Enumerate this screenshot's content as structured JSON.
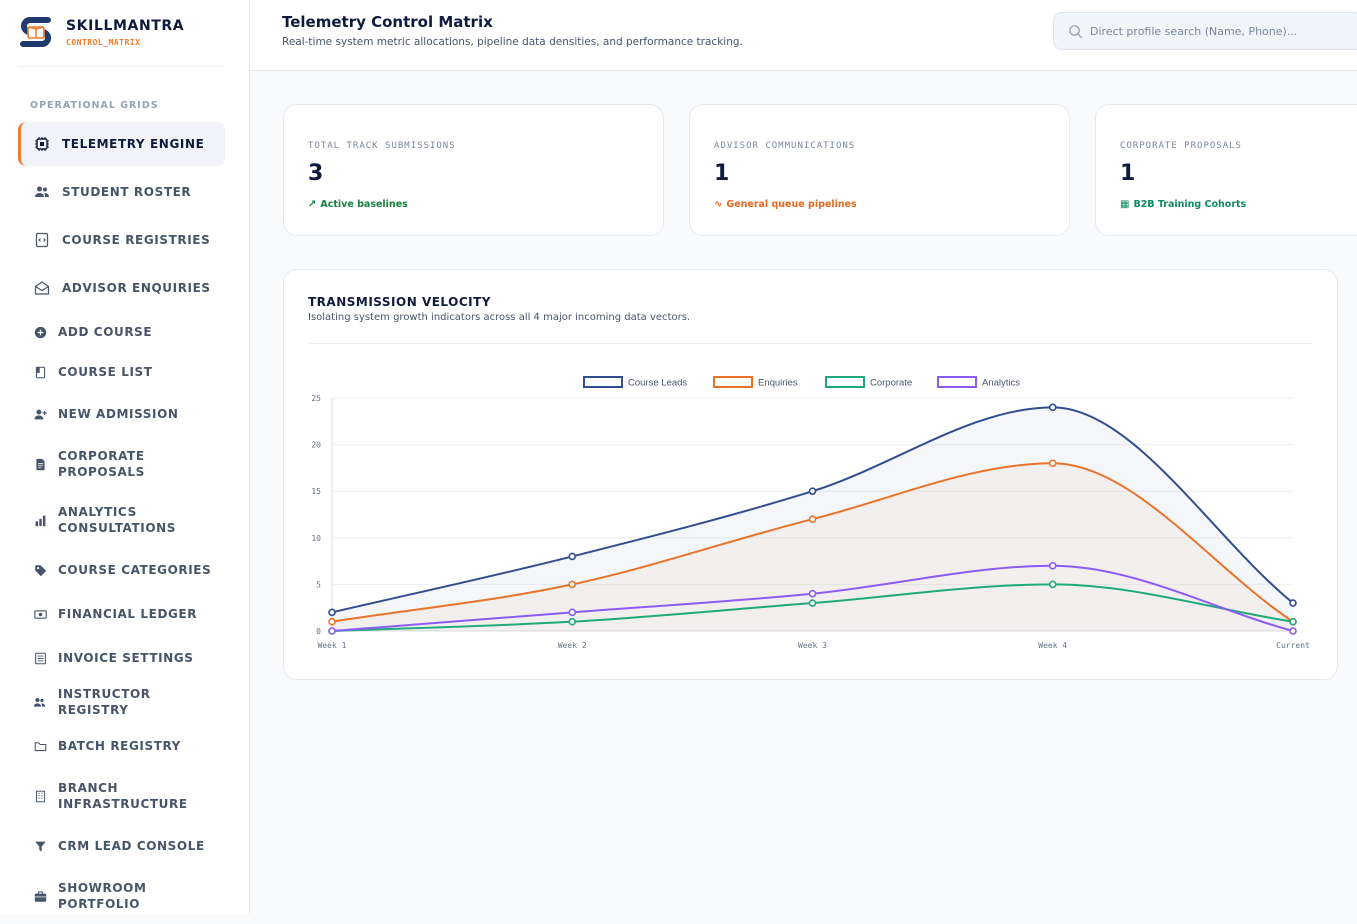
{
  "brand": {
    "name": "SKILLMANTRA",
    "sub": "CONTROL_MATRIX"
  },
  "sidebar": {
    "section_label": "OPERATIONAL GRIDS",
    "items": [
      {
        "label": "TELEMETRY ENGINE",
        "icon": "cpu-icon",
        "active": true
      },
      {
        "label": "STUDENT ROSTER",
        "icon": "users-icon"
      },
      {
        "label": "COURSE REGISTRIES",
        "icon": "code-file-icon"
      },
      {
        "label": "ADVISOR ENQUIRIES",
        "icon": "mail-open-icon"
      },
      {
        "label": "ADD COURSE",
        "icon": "plus-circle-icon"
      },
      {
        "label": "COURSE LIST",
        "icon": "book-icon"
      },
      {
        "label": "NEW ADMISSION",
        "icon": "user-plus-icon"
      },
      {
        "label": "CORPORATE PROPOSALS",
        "icon": "document-icon"
      },
      {
        "label": "ANALYTICS CONSULTATIONS",
        "icon": "bar-chart-icon"
      },
      {
        "label": "COURSE CATEGORIES",
        "icon": "tag-icon"
      },
      {
        "label": "FINANCIAL LEDGER",
        "icon": "cash-icon"
      },
      {
        "label": "INVOICE SETTINGS",
        "icon": "invoice-icon"
      },
      {
        "label": "INSTRUCTOR REGISTRY",
        "icon": "users-icon"
      },
      {
        "label": "BATCH REGISTRY",
        "icon": "folder-icon"
      },
      {
        "label": "BRANCH INFRASTRUCTURE",
        "icon": "building-icon"
      },
      {
        "label": "CRM LEAD CONSOLE",
        "icon": "filter-icon"
      },
      {
        "label": "SHOWROOM PORTFOLIO",
        "icon": "briefcase-icon"
      }
    ]
  },
  "header": {
    "title": "Telemetry Control Matrix",
    "subtitle": "Real-time system metric allocations, pipeline data densities, and performance tracking.",
    "search_placeholder": "Direct profile search (Name, Phone)..."
  },
  "stats": [
    {
      "label": "TOTAL TRACK SUBMISSIONS",
      "value": "3",
      "note": "Active baselines",
      "note_icon": "↗",
      "color": "#15803d"
    },
    {
      "label": "ADVISOR COMMUNICATIONS",
      "value": "1",
      "note": "General queue pipelines",
      "note_icon": "∿",
      "color": "#e8681f"
    },
    {
      "label": "CORPORATE PROPOSALS",
      "value": "1",
      "note": "B2B Training Cohorts",
      "note_icon": "▦",
      "color": "#0f8a5f"
    }
  ],
  "chart_card": {
    "title": "TRANSMISSION VELOCITY",
    "subtitle": "Isolating system growth indicators across all 4 major incoming data vectors."
  },
  "chart_data": {
    "type": "line",
    "categories": [
      "Week 1",
      "Week 2",
      "Week 3",
      "Week 4",
      "Current"
    ],
    "ylim": [
      0,
      25
    ],
    "yticks": [
      0,
      5,
      10,
      15,
      20,
      25
    ],
    "legend_position": "top-center",
    "grid": true,
    "series": [
      {
        "name": "Course Leads",
        "values": [
          2,
          8,
          15,
          24,
          3
        ],
        "color": "#2f4f8f",
        "fill": true
      },
      {
        "name": "Enquiries",
        "values": [
          1,
          5,
          12,
          18,
          1
        ],
        "color": "#e8742a",
        "fill": true
      },
      {
        "name": "Corporate",
        "values": [
          0,
          1,
          3,
          5,
          1
        ],
        "color": "#1faa7a",
        "fill": false
      },
      {
        "name": "Analytics",
        "values": [
          0,
          2,
          4,
          7,
          0
        ],
        "color": "#8b5cf6",
        "fill": false
      }
    ]
  }
}
